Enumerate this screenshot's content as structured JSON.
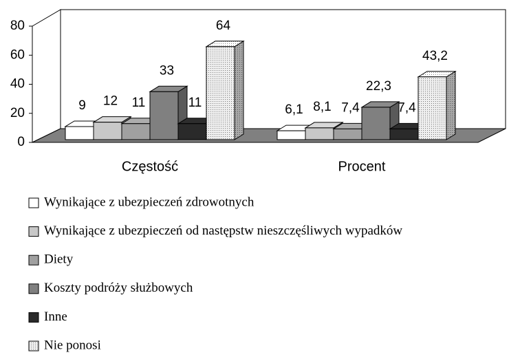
{
  "chart_data": {
    "type": "bar3d",
    "categories": [
      "Częstość",
      "Procent"
    ],
    "series": [
      {
        "name": "Wynikające z ubezpieczeń zdrowotnych",
        "color": "#ffffff",
        "values": [
          9,
          6.1
        ],
        "value_labels": [
          "9",
          "6,1"
        ]
      },
      {
        "name": "Wynikające z ubezpieczeń od następstw nieszczęśliwych wypadków",
        "color": "#c8c8c8",
        "values": [
          12,
          8.1
        ],
        "value_labels": [
          "12",
          "8,1"
        ]
      },
      {
        "name": "Diety",
        "color": "#a0a0a0",
        "values": [
          11,
          7.4
        ],
        "value_labels": [
          "11",
          "7,4"
        ]
      },
      {
        "name": "Koszty podróży służbowych",
        "color": "#808080",
        "values": [
          33,
          22.3
        ],
        "value_labels": [
          "33",
          "22,3"
        ]
      },
      {
        "name": "Inne",
        "color": "#2a2a2a",
        "values": [
          11,
          7.4
        ],
        "value_labels": [
          "11",
          "7,4"
        ]
      },
      {
        "name": "Nie ponosi",
        "color": "#e6e6e6",
        "pattern": "dotted",
        "values": [
          64,
          43.2
        ],
        "value_labels": [
          "64",
          "43,2"
        ]
      }
    ],
    "ylim": [
      0,
      80
    ],
    "yticks": [
      0,
      20,
      40,
      60,
      80
    ],
    "legend": "bottom"
  }
}
